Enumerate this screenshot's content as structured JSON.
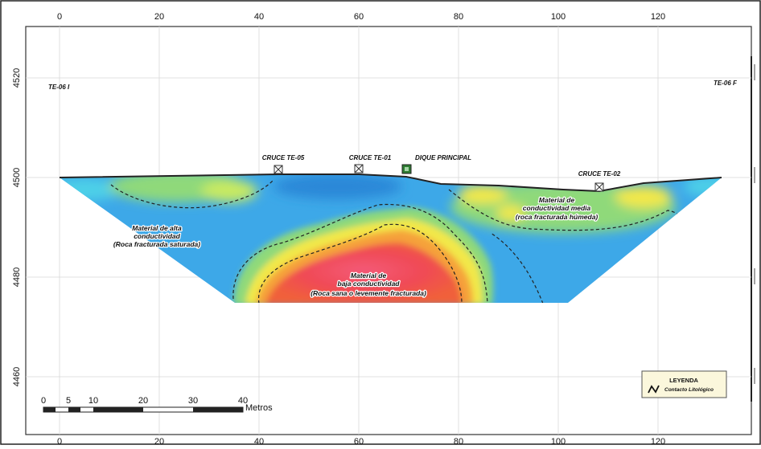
{
  "axes": {
    "x_ticks": [
      "0",
      "20",
      "40",
      "60",
      "80",
      "100",
      "120"
    ],
    "y_ticks": [
      "4520",
      "4500",
      "4480",
      "4460"
    ]
  },
  "profile": {
    "start_label": "TE-06 I",
    "end_label": "TE-06 F"
  },
  "markers": [
    {
      "label": "CRUCE TE-05",
      "icon": "crossed-box-icon"
    },
    {
      "label": "CRUCE TE-01",
      "icon": "crossed-box-icon"
    },
    {
      "label": "DIQUE PRINCIPAL",
      "icon": "green-box-icon"
    },
    {
      "label": "CRUCE TE-02",
      "icon": "crossed-box-icon"
    }
  ],
  "zones": {
    "high": [
      "Material de alta",
      "conductividad",
      "(Roca fracturada saturada)"
    ],
    "low": [
      "Material de",
      "baja conductividad",
      "(Roca sana o levemente fracturada)"
    ],
    "medium": [
      "Material de",
      "conductividad media",
      "(roca fracturada húmeda)"
    ]
  },
  "scale_bar": {
    "ticks": [
      "0",
      "5",
      "10",
      "20",
      "30",
      "40"
    ],
    "unit": "Metros"
  },
  "legend": {
    "title": "LEYENDA",
    "item": "Contacto Litológico"
  },
  "colors": {
    "high_conductivity": "#3da8e8",
    "medium_conductivity": "#8fd97a",
    "low_conductivity": "#f05060",
    "transition": "#f2e84a",
    "legend_bg": "#fbf7dc"
  }
}
